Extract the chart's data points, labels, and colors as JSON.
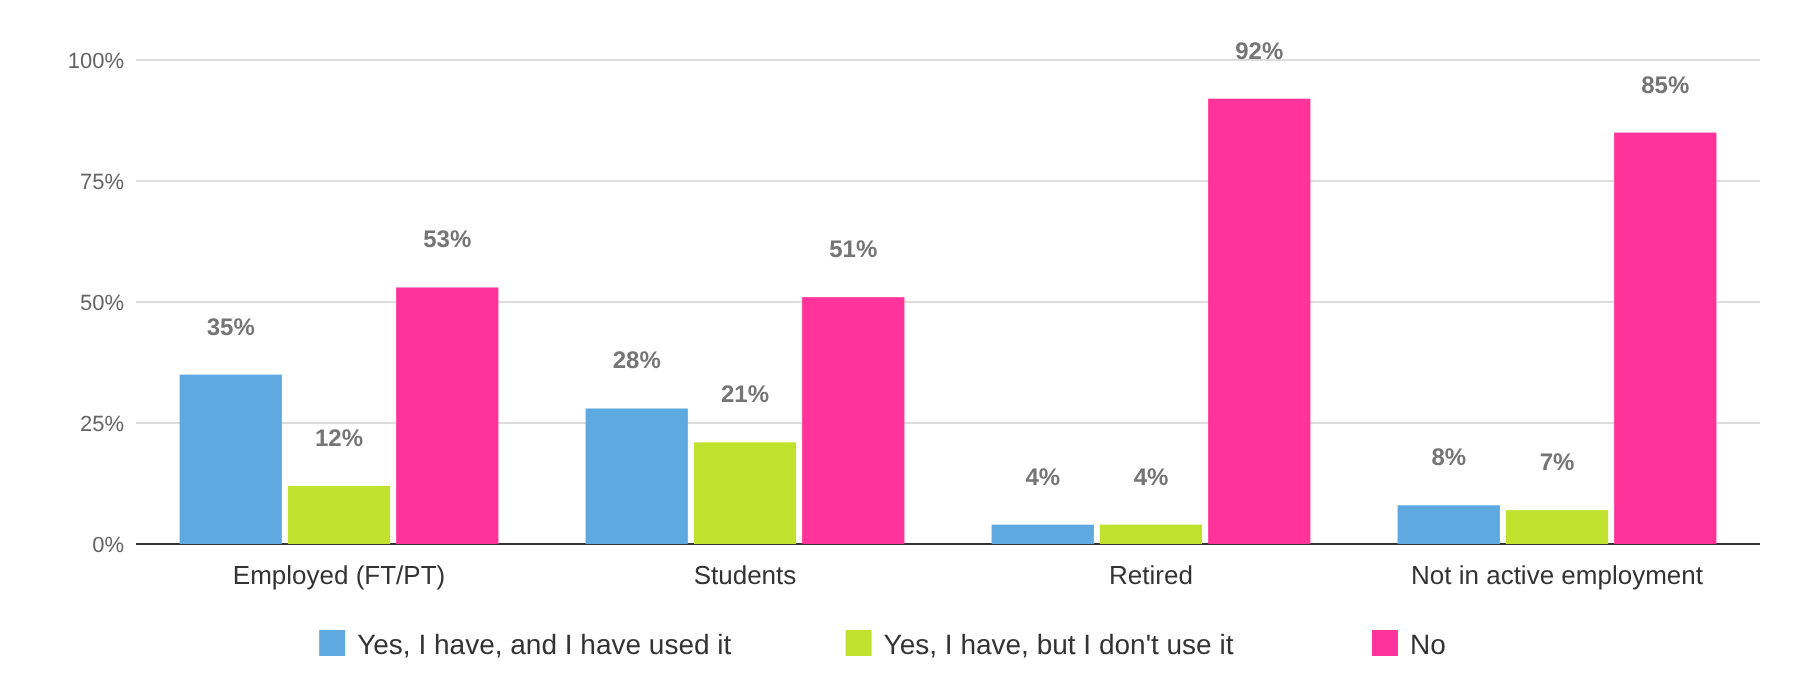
{
  "chart_data": {
    "type": "bar",
    "categories": [
      "Employed (FT/PT)",
      "Students",
      "Retired",
      "Not in active employment"
    ],
    "series": [
      {
        "name": "Yes, I have, and I have used it",
        "color": "#5ea9e0",
        "values": [
          35,
          28,
          4,
          8
        ],
        "value_labels": [
          "35%",
          "28%",
          "4%",
          "8%"
        ]
      },
      {
        "name": "Yes, I have, but I don't use it",
        "color": "#c0e22e",
        "values": [
          12,
          21,
          4,
          7
        ],
        "value_labels": [
          "12%",
          "21%",
          "4%",
          "7%"
        ]
      },
      {
        "name": "No",
        "color": "#ff3399",
        "values": [
          53,
          51,
          92,
          85
        ],
        "value_labels": [
          "53%",
          "51%",
          "92%",
          "85%"
        ]
      }
    ],
    "ylim": [
      0,
      100
    ],
    "yticks": [
      {
        "value": 0,
        "label": "0%"
      },
      {
        "value": 25,
        "label": "25%"
      },
      {
        "value": 50,
        "label": "50%"
      },
      {
        "value": 75,
        "label": "75%"
      },
      {
        "value": 100,
        "label": "100%"
      }
    ],
    "grid": "y",
    "legend": "bottom"
  }
}
